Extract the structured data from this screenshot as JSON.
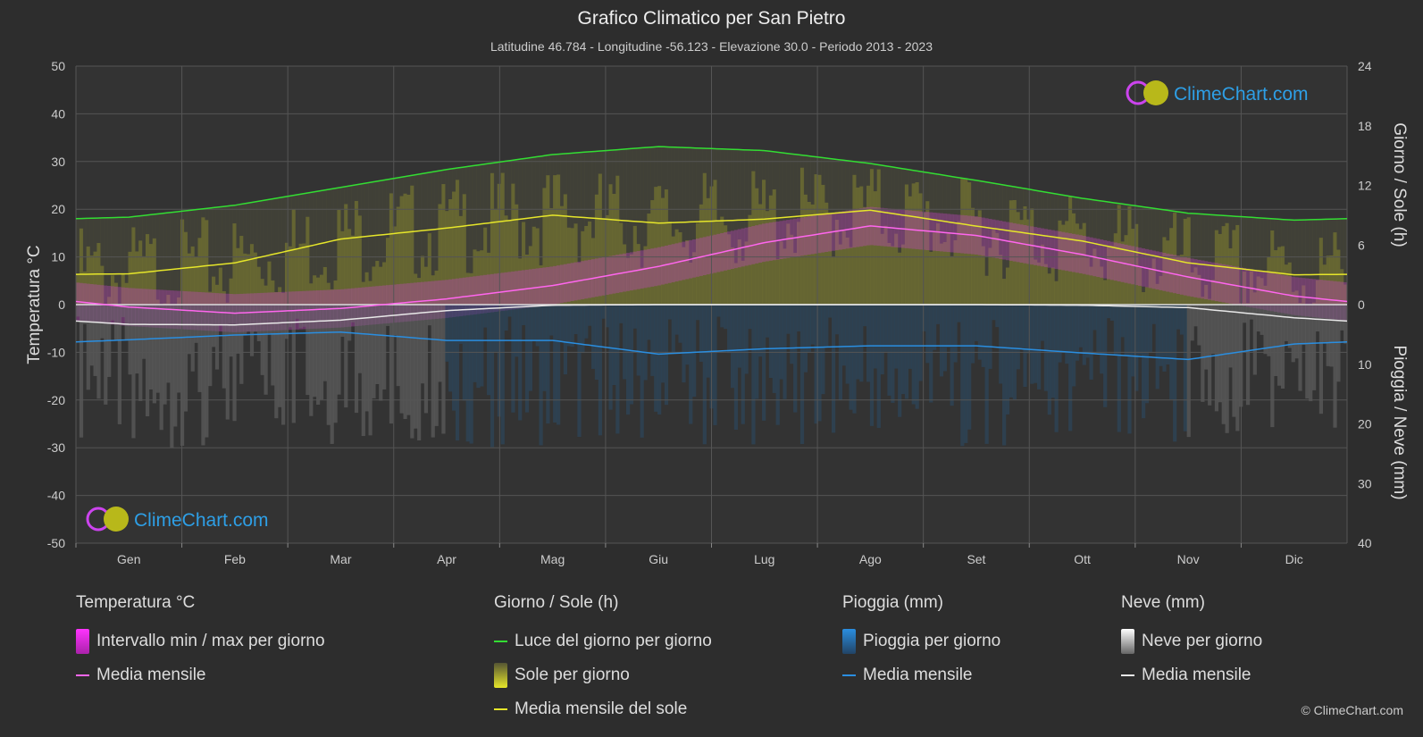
{
  "chart_data": {
    "type": "line",
    "title": "Grafico Climatico per San Pietro",
    "subtitle": "Latitudine 46.784 - Longitudine -56.123 - Elevazione 30.0 - Periodo 2013 - 2023",
    "categories": [
      "Gen",
      "Feb",
      "Mar",
      "Apr",
      "Mag",
      "Giu",
      "Lug",
      "Ago",
      "Set",
      "Ott",
      "Nov",
      "Dic"
    ],
    "y_left": {
      "label": "Temperatura °C",
      "ylim": [
        -50,
        50
      ],
      "ticks": [
        50,
        40,
        30,
        20,
        10,
        0,
        -10,
        -20,
        -30,
        -40,
        -50
      ]
    },
    "y_right_top": {
      "label": "Giorno / Sole (h)",
      "ylim": [
        0,
        24
      ],
      "ticks": [
        24,
        18,
        12,
        6,
        0
      ]
    },
    "y_right_bottom": {
      "label": "Pioggia / Neve (mm)",
      "ylim": [
        0,
        40
      ],
      "ticks": [
        10,
        20,
        30,
        40
      ]
    },
    "grid": true,
    "series": [
      {
        "name": "Luce del giorno per giorno",
        "axis": "sun_h",
        "color": "#33dd33",
        "values": [
          8.8,
          10.0,
          11.8,
          13.6,
          15.1,
          15.9,
          15.5,
          14.2,
          12.5,
          10.7,
          9.2,
          8.5
        ]
      },
      {
        "name": "Media mensile del sole",
        "axis": "sun_h",
        "color": "#e6e62a",
        "values": [
          3.1,
          4.2,
          6.6,
          7.7,
          9.0,
          8.2,
          8.6,
          9.5,
          7.9,
          6.4,
          4.2,
          3.0
        ]
      },
      {
        "name": "Media mensile",
        "group": "Temperatura °C",
        "axis": "temp_c",
        "color": "#ff66ee",
        "values": [
          -0.5,
          -1.8,
          -0.8,
          1.2,
          4.0,
          8.0,
          13.0,
          16.5,
          14.5,
          10.5,
          5.8,
          1.8
        ]
      },
      {
        "name": "Media mensile",
        "group": "Neve (mm)",
        "axis": "precip_mm",
        "color": "#e8e8e8",
        "values": [
          3.3,
          3.4,
          2.6,
          1.0,
          0.1,
          0.0,
          0.0,
          0.0,
          0.0,
          0.1,
          0.5,
          2.2
        ]
      },
      {
        "name": "Media mensile",
        "group": "Pioggia (mm)",
        "axis": "precip_mm",
        "color": "#2a8ee0",
        "values": [
          5.9,
          5.1,
          4.6,
          6.0,
          6.0,
          8.3,
          7.4,
          6.9,
          6.9,
          8.1,
          9.2,
          6.6
        ]
      }
    ]
  },
  "legend": {
    "temp": {
      "title": "Temperatura °C",
      "items": [
        "Intervallo min / max per giorno",
        "Media mensile"
      ]
    },
    "sun": {
      "title": "Giorno / Sole (h)",
      "items": [
        "Luce del giorno per giorno",
        "Sole per giorno",
        "Media mensile del sole"
      ]
    },
    "rain": {
      "title": "Pioggia (mm)",
      "items": [
        "Pioggia per giorno",
        "Media mensile"
      ]
    },
    "snow": {
      "title": "Neve (mm)",
      "items": [
        "Neve per giorno",
        "Media mensile"
      ]
    }
  },
  "logo": "ClimeChart.com",
  "copyright": "© ClimeChart.com",
  "colors": {
    "background": "#2d2d2d",
    "plot": "#333333",
    "daylight": "#33dd33",
    "sun": "#e6e62a",
    "temp": "#ff66ee",
    "rain": "#2a8ee0",
    "snow": "#e8e8e8"
  }
}
